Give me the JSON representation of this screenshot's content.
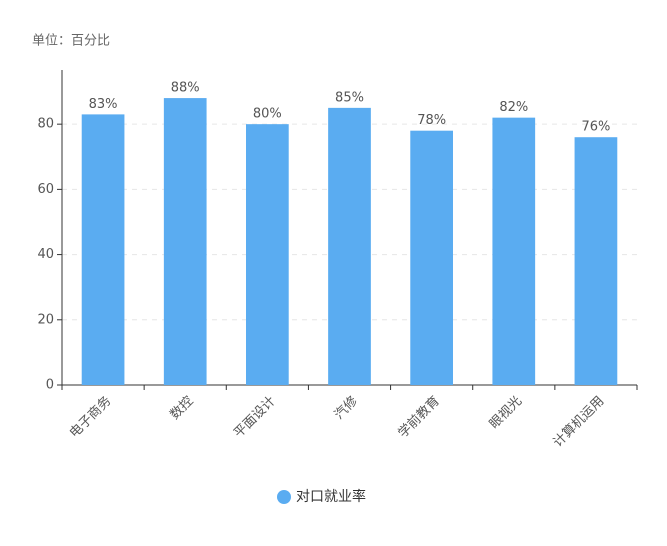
{
  "chart_data": {
    "type": "bar",
    "unit_label": "单位：百分比",
    "categories": [
      "电子商务",
      "数控",
      "平面设计",
      "汽修",
      "学前教育",
      "眼视光",
      "计算机运用"
    ],
    "series": [
      {
        "name": "对口就业率",
        "color": "#5aacf1",
        "values": [
          83,
          88,
          80,
          85,
          78,
          82,
          76
        ],
        "value_labels": [
          "83%",
          "88%",
          "80%",
          "85%",
          "78%",
          "82%",
          "76%"
        ]
      }
    ],
    "ylim": [
      0,
      96
    ],
    "yticks": [
      0,
      20,
      40,
      60,
      80
    ],
    "grid": true,
    "legend": "bottom"
  }
}
